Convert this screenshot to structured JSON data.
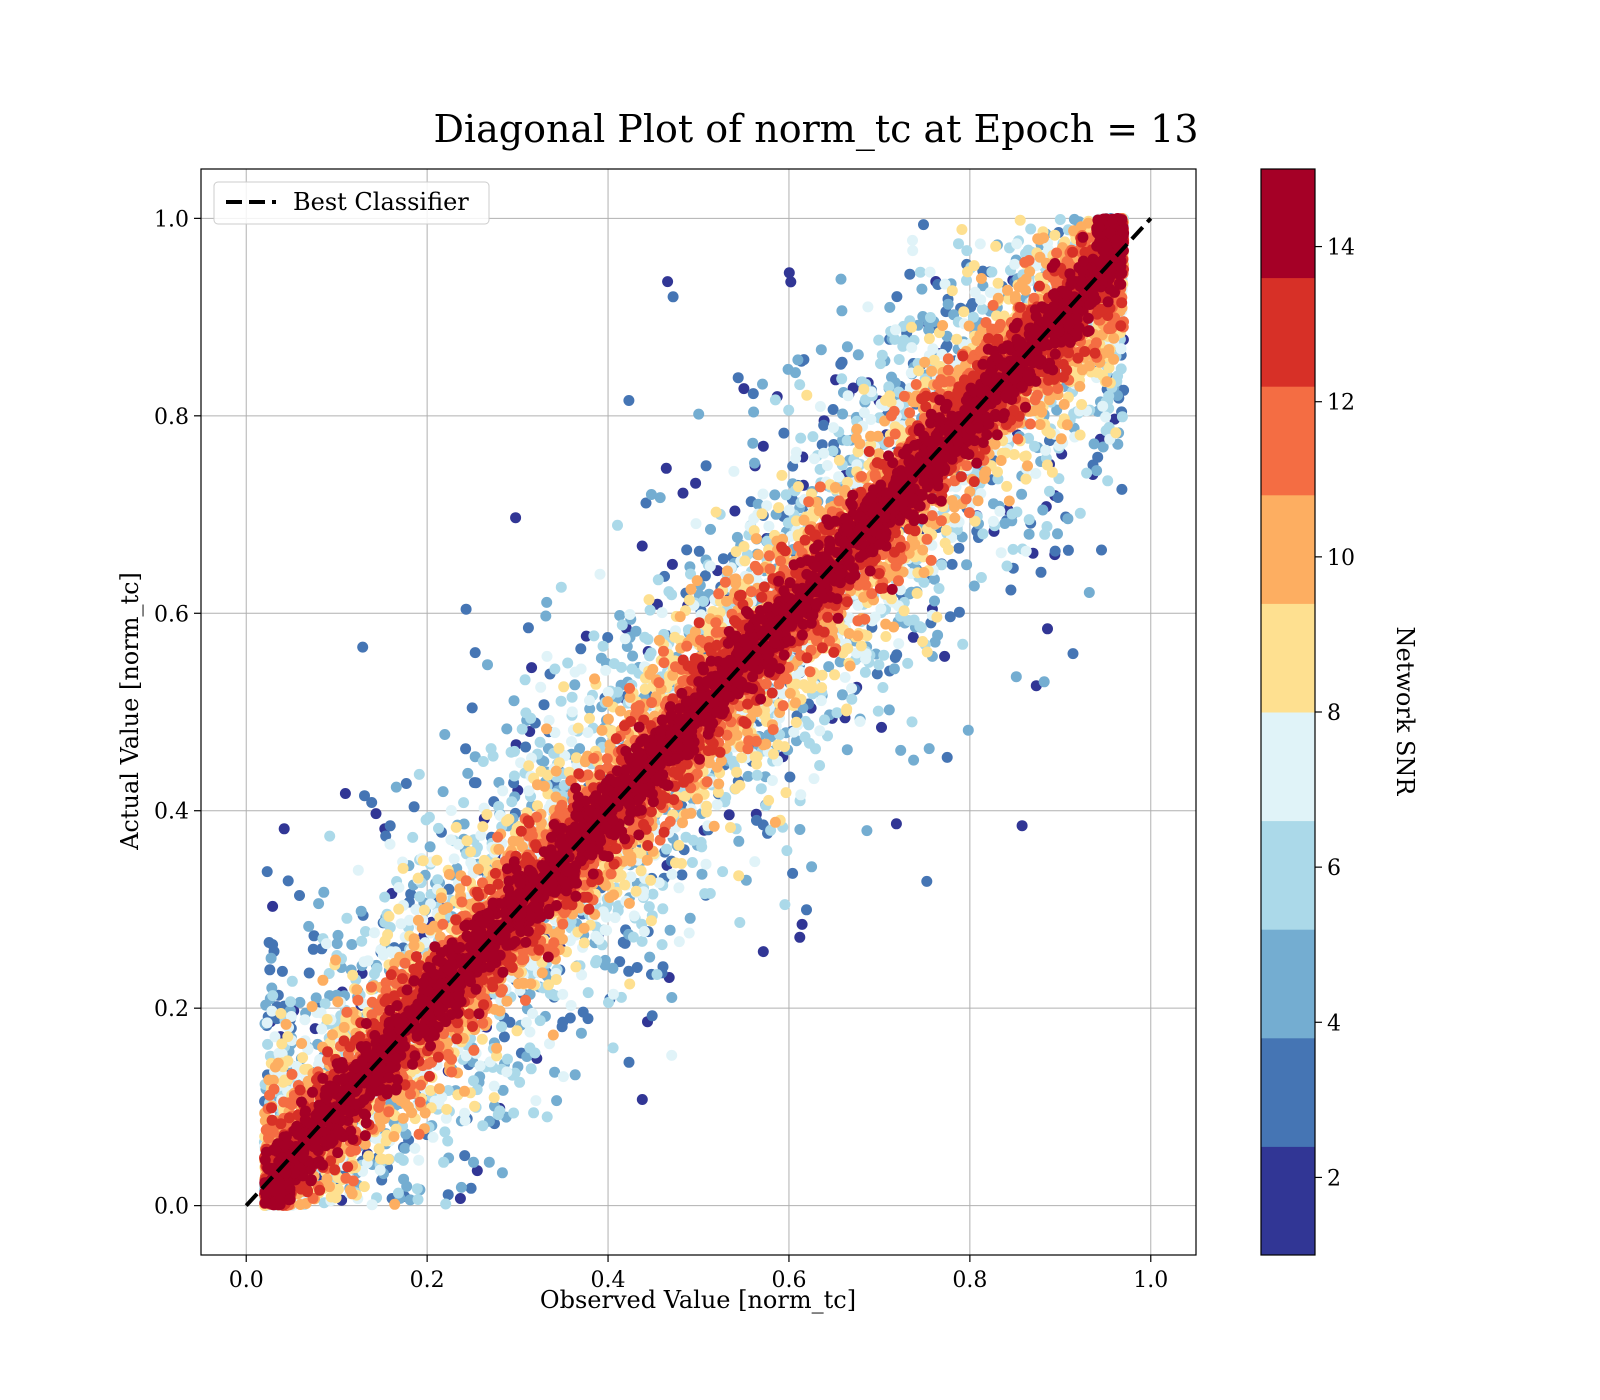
{
  "chart_data": {
    "type": "scatter",
    "title": "Diagonal Plot of norm_tc at Epoch = 13",
    "xlabel": "Observed Value [norm_tc]",
    "ylabel": "Actual Value [norm_tc]",
    "xlim": [
      -0.05,
      1.05
    ],
    "ylim": [
      -0.05,
      1.05
    ],
    "grid": true,
    "x_ticks": [
      "0.0",
      "0.2",
      "0.4",
      "0.6",
      "0.8",
      "1.0"
    ],
    "y_ticks": [
      "0.0",
      "0.2",
      "0.4",
      "0.6",
      "0.8",
      "1.0"
    ],
    "x_tick_values": [
      0.0,
      0.2,
      0.4,
      0.6,
      0.8,
      1.0
    ],
    "y_tick_values": [
      0.0,
      0.2,
      0.4,
      0.6,
      0.8,
      1.0
    ],
    "reference_line": {
      "name": "Best Classifier",
      "x": [
        0.0,
        1.0
      ],
      "y": [
        0.0,
        1.0
      ],
      "style": "dashed",
      "color": "#000000"
    },
    "legend": {
      "location": "upper-left",
      "entries": [
        "Best Classifier"
      ]
    },
    "scatter_description": {
      "point_count_approx": "dense (tens of thousands)",
      "x_range": [
        0.02,
        0.97
      ],
      "y_range": [
        0.0,
        1.0
      ],
      "high_snr_band_halfwidth": 0.1,
      "low_snr_spread_max": 0.6
    },
    "colorbar": {
      "label": "Network SNR",
      "range": [
        1,
        15
      ],
      "levels": [
        1,
        2.4,
        3.8,
        5.2,
        6.6,
        8.0,
        9.4,
        10.8,
        12.2,
        13.6,
        15
      ],
      "colors": [
        "#313695",
        "#4575b4",
        "#74add1",
        "#abd9e9",
        "#e0f3f8",
        "#fee090",
        "#fdae61",
        "#f46d43",
        "#d73027",
        "#a50026"
      ],
      "ticks": [
        "2",
        "4",
        "6",
        "8",
        "10",
        "12",
        "14"
      ],
      "tick_values": [
        2,
        4,
        6,
        8,
        10,
        12,
        14
      ]
    }
  }
}
